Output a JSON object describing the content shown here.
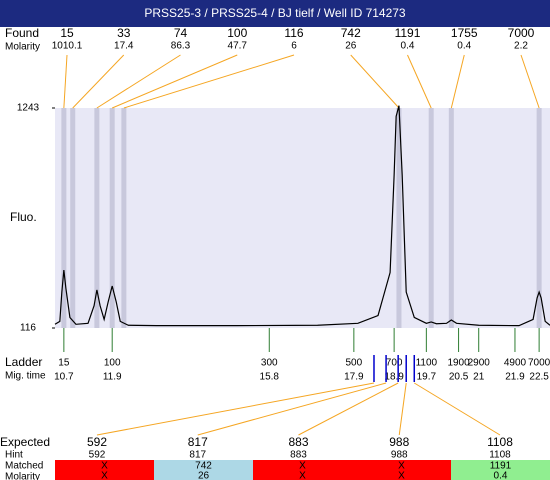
{
  "chart_data": {
    "type": "line",
    "title": "PRSS25-3 / PRSS25-4 / BJ tielf / Well ID 714273",
    "y_label": "Fluo.",
    "color": "#000000",
    "background": "#e8e8f6",
    "xlim": [
      10.48,
      22.77
    ],
    "ylim": [
      116,
      1243
    ],
    "yticks": [
      116,
      1243
    ],
    "x": [
      10.48,
      10.6,
      10.65,
      10.7,
      10.75,
      10.85,
      11.0,
      11.3,
      11.45,
      11.52,
      11.6,
      11.7,
      11.8,
      11.9,
      12.0,
      12.1,
      12.3,
      13,
      15,
      17,
      18.0,
      18.5,
      18.8,
      18.9,
      18.95,
      19.02,
      19.1,
      19.2,
      19.4,
      19.7,
      19.82,
      19.95,
      20.2,
      20.32,
      20.45,
      21,
      22,
      22.35,
      22.45,
      22.5,
      22.55,
      22.65,
      22.77
    ],
    "values": [
      135,
      150,
      300,
      413,
      320,
      170,
      135,
      140,
      230,
      311,
      230,
      160,
      250,
      331,
      250,
      150,
      130,
      128,
      128,
      130,
      140,
      180,
      400,
      900,
      1200,
      1255,
      900,
      300,
      170,
      140,
      147,
      138,
      140,
      157,
      140,
      130,
      128,
      160,
      270,
      300,
      270,
      150,
      130
    ],
    "found": {
      "label": "Found",
      "molarity_label": "Molarity",
      "sizes": [
        15,
        33,
        74,
        100,
        116,
        742,
        1191,
        1755,
        7000
      ],
      "molarity": [
        1010.1,
        17.4,
        86.3,
        47.7,
        6,
        26,
        0.4,
        0.4,
        2.2
      ],
      "mig_times": [
        10.7,
        10.92,
        11.52,
        11.9,
        12.19,
        19.02,
        19.82,
        20.32,
        22.5
      ],
      "color": "#f5a623",
      "band_color": "#c8c8dc"
    },
    "ladder": {
      "label": "Ladder",
      "time_label": "Mig. time",
      "sizes": [
        15,
        100,
        300,
        500,
        700,
        1100,
        1900,
        2900,
        4900,
        7000
      ],
      "mig_times": [
        10.7,
        11.9,
        15.8,
        17.9,
        18.9,
        19.7,
        20.5,
        21,
        21.9,
        22.5
      ],
      "color": "#2e7d32"
    },
    "expected": {
      "label": "Expected",
      "hint_label": "Hint",
      "matched_label": "Matched",
      "molarity_label": "Molarity",
      "sizes": [
        592,
        817,
        883,
        988,
        1108
      ],
      "hints": [
        592,
        817,
        883,
        988,
        1108
      ],
      "matched": [
        "X",
        "742",
        "X",
        "X",
        "1191"
      ],
      "molarity": [
        "X",
        "26",
        "X",
        "X",
        "0.4"
      ],
      "mig_times": [
        18.4,
        18.7,
        19.0,
        19.2,
        19.4
      ],
      "colors": [
        "#ff0000",
        "#add8e6",
        "#ff0000",
        "#ff0000",
        "#90ee90"
      ],
      "marker_color": "#0000cc"
    }
  }
}
